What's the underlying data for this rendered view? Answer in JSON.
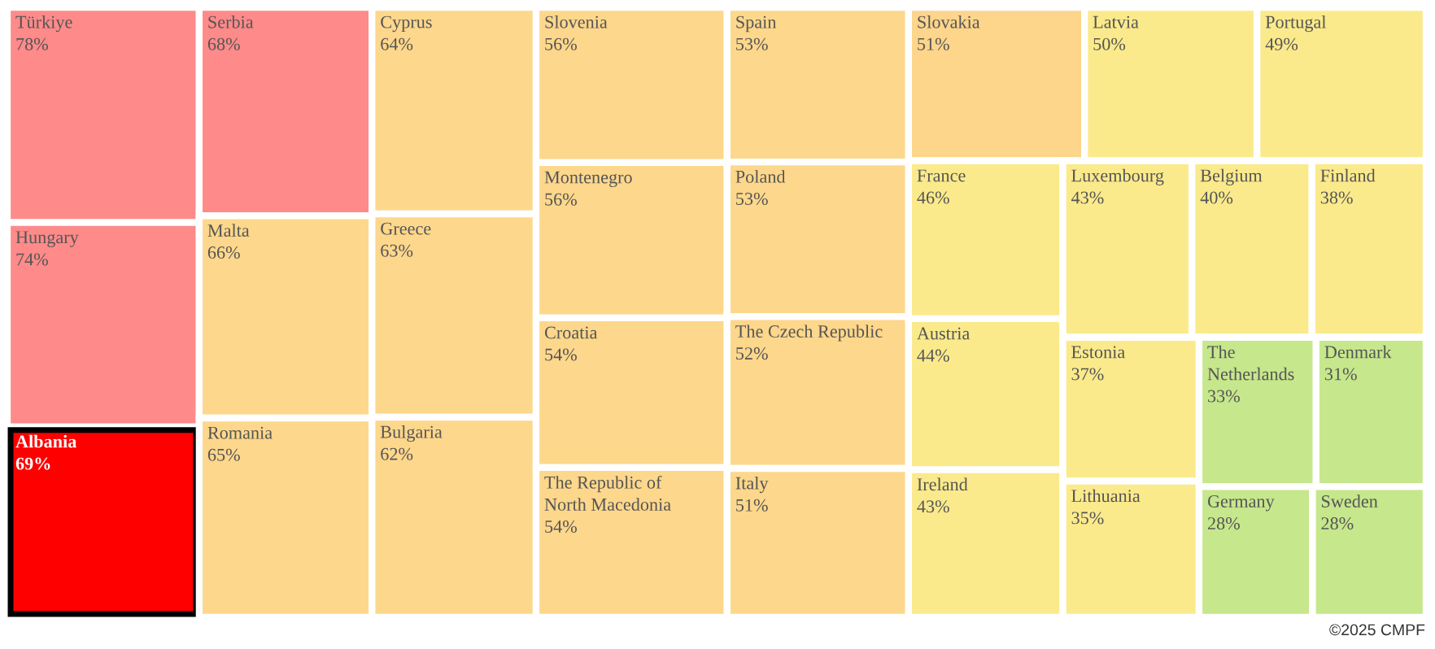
{
  "chart_data": {
    "type": "other",
    "categories": [
      "Türkiye",
      "Hungary",
      "Albania",
      "Serbia",
      "Malta",
      "Romania",
      "Cyprus",
      "Greece",
      "Bulgaria",
      "Slovenia",
      "Montenegro",
      "Croatia",
      "The Republic of\nNorth Macedonia",
      "Spain",
      "Poland",
      "The Czech Republic",
      "Italy",
      "Slovakia",
      "Latvia",
      "Portugal",
      "France",
      "Austria",
      "Ireland",
      "Luxembourg",
      "Belgium",
      "Finland",
      "Estonia",
      "Lithuania",
      "The\nNetherlands",
      "Denmark",
      "Germany",
      "Sweden"
    ],
    "values": [
      78,
      74,
      69,
      68,
      66,
      65,
      64,
      63,
      62,
      56,
      56,
      54,
      54,
      53,
      53,
      52,
      51,
      51,
      50,
      49,
      46,
      44,
      43,
      43,
      40,
      38,
      37,
      35,
      33,
      31,
      28,
      28
    ],
    "value_labels": [
      "78%",
      "74%",
      "69%",
      "68%",
      "66%",
      "65%",
      "64%",
      "63%",
      "62%",
      "56%",
      "56%",
      "54%",
      "54%",
      "53%",
      "53%",
      "52%",
      "51%",
      "51%",
      "50%",
      "49%",
      "46%",
      "44%",
      "43%",
      "43%",
      "40%",
      "38%",
      "37%",
      "35%",
      "33%",
      "31%",
      "28%",
      "28%"
    ],
    "colors": [
      "#fe8a8a",
      "#fe8a8a",
      "#ff0000",
      "#fe8a8a",
      "#fdd78b",
      "#fdd78b",
      "#fdd78b",
      "#fdd78b",
      "#fdd78b",
      "#fdd78b",
      "#fdd78b",
      "#fdd78b",
      "#fdd78b",
      "#fdd78b",
      "#fdd78b",
      "#fdd78b",
      "#fdd78b",
      "#fdd58b",
      "#fbea8b",
      "#fbea8b",
      "#fbea8b",
      "#fbea8b",
      "#fbea8b",
      "#fbea8b",
      "#fbea8b",
      "#fbea8b",
      "#fbea8b",
      "#fbea8b",
      "#c6e78c",
      "#c6e78c",
      "#c6e78c",
      "#c6e78c"
    ],
    "annotations": [
      "©2025 CMPF"
    ]
  }
}
